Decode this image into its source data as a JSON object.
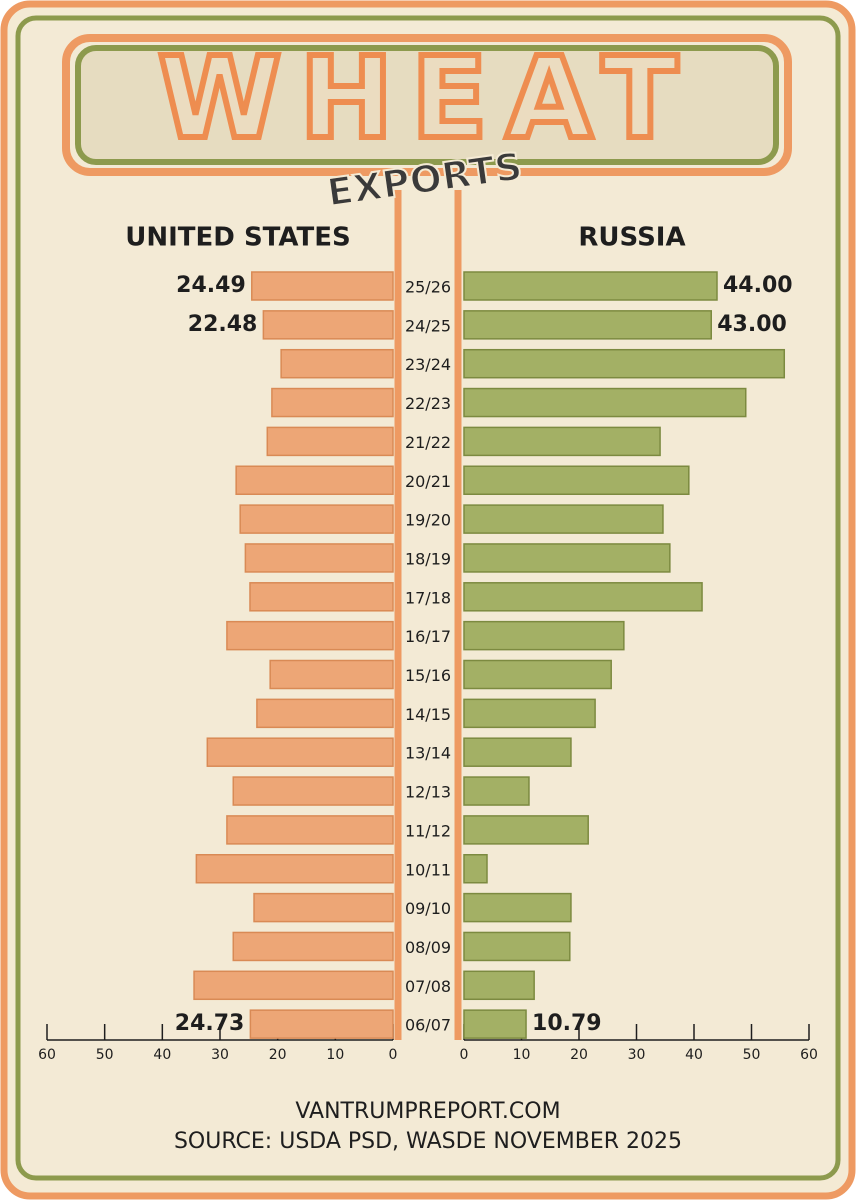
{
  "chart_data": {
    "type": "butterfly",
    "title": "WHEAT",
    "subtitle": "EXPORTS",
    "categories": [
      "25/26",
      "24/25",
      "23/24",
      "22/23",
      "21/22",
      "20/21",
      "19/20",
      "18/19",
      "17/18",
      "16/17",
      "15/16",
      "14/15",
      "13/14",
      "12/13",
      "11/12",
      "10/11",
      "09/10",
      "08/09",
      "07/08",
      "06/07"
    ],
    "series": [
      {
        "name": "UNITED STATES",
        "color": "#eda676",
        "side": "left",
        "values": [
          24.49,
          22.48,
          19.4,
          21.0,
          21.8,
          27.2,
          26.5,
          25.6,
          24.8,
          28.8,
          21.3,
          23.6,
          32.2,
          27.7,
          28.8,
          34.1,
          24.1,
          27.7,
          34.5,
          24.73
        ],
        "value_labels": [
          "24.49",
          "22.48",
          null,
          null,
          null,
          null,
          null,
          null,
          null,
          null,
          null,
          null,
          null,
          null,
          null,
          null,
          null,
          null,
          null,
          "24.73"
        ],
        "xlim": [
          0,
          60
        ],
        "xticks": [
          0,
          10,
          20,
          30,
          40,
          50,
          60
        ]
      },
      {
        "name": "RUSSIA",
        "color": "#a3b065",
        "side": "right",
        "values": [
          44.0,
          43.0,
          55.7,
          49.0,
          34.1,
          39.1,
          34.6,
          35.8,
          41.4,
          27.8,
          25.6,
          22.8,
          18.6,
          11.3,
          21.6,
          4.0,
          18.6,
          18.4,
          12.2,
          10.79
        ],
        "value_labels": [
          "44.00",
          "43.00",
          null,
          null,
          null,
          null,
          null,
          null,
          null,
          null,
          null,
          null,
          null,
          null,
          null,
          null,
          null,
          null,
          null,
          "10.79"
        ],
        "xlim": [
          0,
          60
        ],
        "xticks": [
          0,
          10,
          20,
          30,
          40,
          50,
          60
        ]
      }
    ],
    "footer": [
      "VANTRUMPREPORT.COM",
      "SOURCE: USDA PSD, WASDE NOVEMBER 2025"
    ]
  }
}
